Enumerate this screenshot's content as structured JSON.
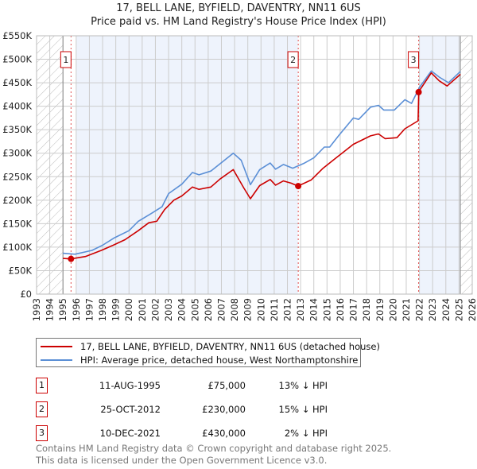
{
  "title_line1": "17, BELL LANE, BYFIELD, DAVENTRY, NN11 6US",
  "title_line2": "Price paid vs. HM Land Registry's House Price Index (HPI)",
  "colors": {
    "property": "#cc0000",
    "hpi": "#5b8fd6",
    "shade": "#eef3fc"
  },
  "chart_data": {
    "type": "line",
    "xlim": [
      1993,
      2026
    ],
    "ylim": [
      0,
      550000
    ],
    "yticks": [
      0,
      50000,
      100000,
      150000,
      200000,
      250000,
      300000,
      350000,
      400000,
      450000,
      500000,
      550000
    ],
    "ytick_labels": [
      "£0",
      "£50K",
      "£100K",
      "£150K",
      "£200K",
      "£250K",
      "£300K",
      "£350K",
      "£400K",
      "£450K",
      "£500K",
      "£550K"
    ],
    "xticks": [
      "1993",
      "1994",
      "1995",
      "1996",
      "1997",
      "1998",
      "1999",
      "2000",
      "2001",
      "2002",
      "2003",
      "2004",
      "2005",
      "2006",
      "2007",
      "2008",
      "2009",
      "2010",
      "2011",
      "2012",
      "2013",
      "2014",
      "2015",
      "2016",
      "2017",
      "2018",
      "2019",
      "2020",
      "2021",
      "2022",
      "2023",
      "2024",
      "2025",
      "2026"
    ],
    "grid": true,
    "hatched_before": 1995.0,
    "hatched_after": 2025.1,
    "shaded_ranges": [
      [
        1996.0,
        2012.8
      ],
      [
        2022.0,
        2025.1
      ]
    ],
    "series": [
      {
        "name": "17, BELL LANE, BYFIELD, DAVENTRY, NN11 6US (detached house)",
        "color": "#cc0000",
        "x": [
          1995,
          1995.6,
          1996.7,
          1997.9,
          1998.8,
          1999.7,
          2000.7,
          2001.5,
          2002.1,
          2002.7,
          2003.4,
          2004,
          2004.8,
          2005.3,
          2006.2,
          2006.9,
          2007.9,
          2008.7,
          2009.2,
          2009.9,
          2010.7,
          2011.1,
          2011.7,
          2012.3,
          2012.8,
          2013.8,
          2014.7,
          2015.6,
          2017,
          2018.3,
          2018.9,
          2019.4,
          2020.3,
          2020.9,
          2021.9,
          2021.95,
          2022.9,
          2023.5,
          2024.1,
          2025.1
        ],
        "y": [
          76,
          75,
          80,
          93,
          104,
          116,
          135,
          152,
          155,
          180,
          200,
          209,
          228,
          223,
          228,
          245,
          265,
          226,
          203,
          231,
          244,
          232,
          241,
          236,
          230,
          243,
          268,
          288,
          319,
          337,
          341,
          331,
          333,
          352,
          369,
          431,
          471,
          454,
          443,
          468
        ]
      },
      {
        "name": "HPI: Average price, detached house, West Northamptonshire",
        "color": "#5b8fd6",
        "x": [
          1995,
          1995.9,
          1997.2,
          1998,
          1998.9,
          2000,
          2000.7,
          2001.7,
          2002.5,
          2003,
          2004,
          2004.8,
          2005.3,
          2006.2,
          2007.1,
          2007.9,
          2008.5,
          2009.2,
          2009.9,
          2010.7,
          2011.1,
          2011.7,
          2012.4,
          2013.3,
          2014,
          2014.8,
          2015.2,
          2015.9,
          2017,
          2017.4,
          2018.3,
          2018.9,
          2019.3,
          2020.1,
          2020.9,
          2021.4,
          2022,
          2022.9,
          2023.5,
          2024.2,
          2025.1
        ],
        "y": [
          87,
          85,
          93,
          104,
          120,
          135,
          155,
          172,
          186,
          214,
          234,
          259,
          254,
          262,
          282,
          300,
          285,
          233,
          265,
          279,
          266,
          276,
          268,
          279,
          290,
          313,
          313,
          338,
          375,
          372,
          398,
          402,
          392,
          392,
          414,
          406,
          440,
          475,
          462,
          450,
          474
        ]
      }
    ],
    "y_units": "£K",
    "sales": [
      {
        "label": "1",
        "x": 1995.61,
        "y": 75
      },
      {
        "label": "2",
        "x": 2012.82,
        "y": 230
      },
      {
        "label": "3",
        "x": 2021.94,
        "y": 430
      }
    ]
  },
  "legend": {
    "property": "17, BELL LANE, BYFIELD, DAVENTRY, NN11 6US (detached house)",
    "hpi": "HPI: Average price, detached house, West Northamptonshire"
  },
  "transactions": [
    {
      "num": "1",
      "date": "11-AUG-1995",
      "price": "£75,000",
      "hpi": "13% ↓ HPI"
    },
    {
      "num": "2",
      "date": "25-OCT-2012",
      "price": "£230,000",
      "hpi": "15% ↓ HPI"
    },
    {
      "num": "3",
      "date": "10-DEC-2021",
      "price": "£430,000",
      "hpi": "2% ↓ HPI"
    }
  ],
  "footer": {
    "line1": "Contains HM Land Registry data © Crown copyright and database right 2025.",
    "line2": "This data is licensed under the Open Government Licence v3.0."
  }
}
